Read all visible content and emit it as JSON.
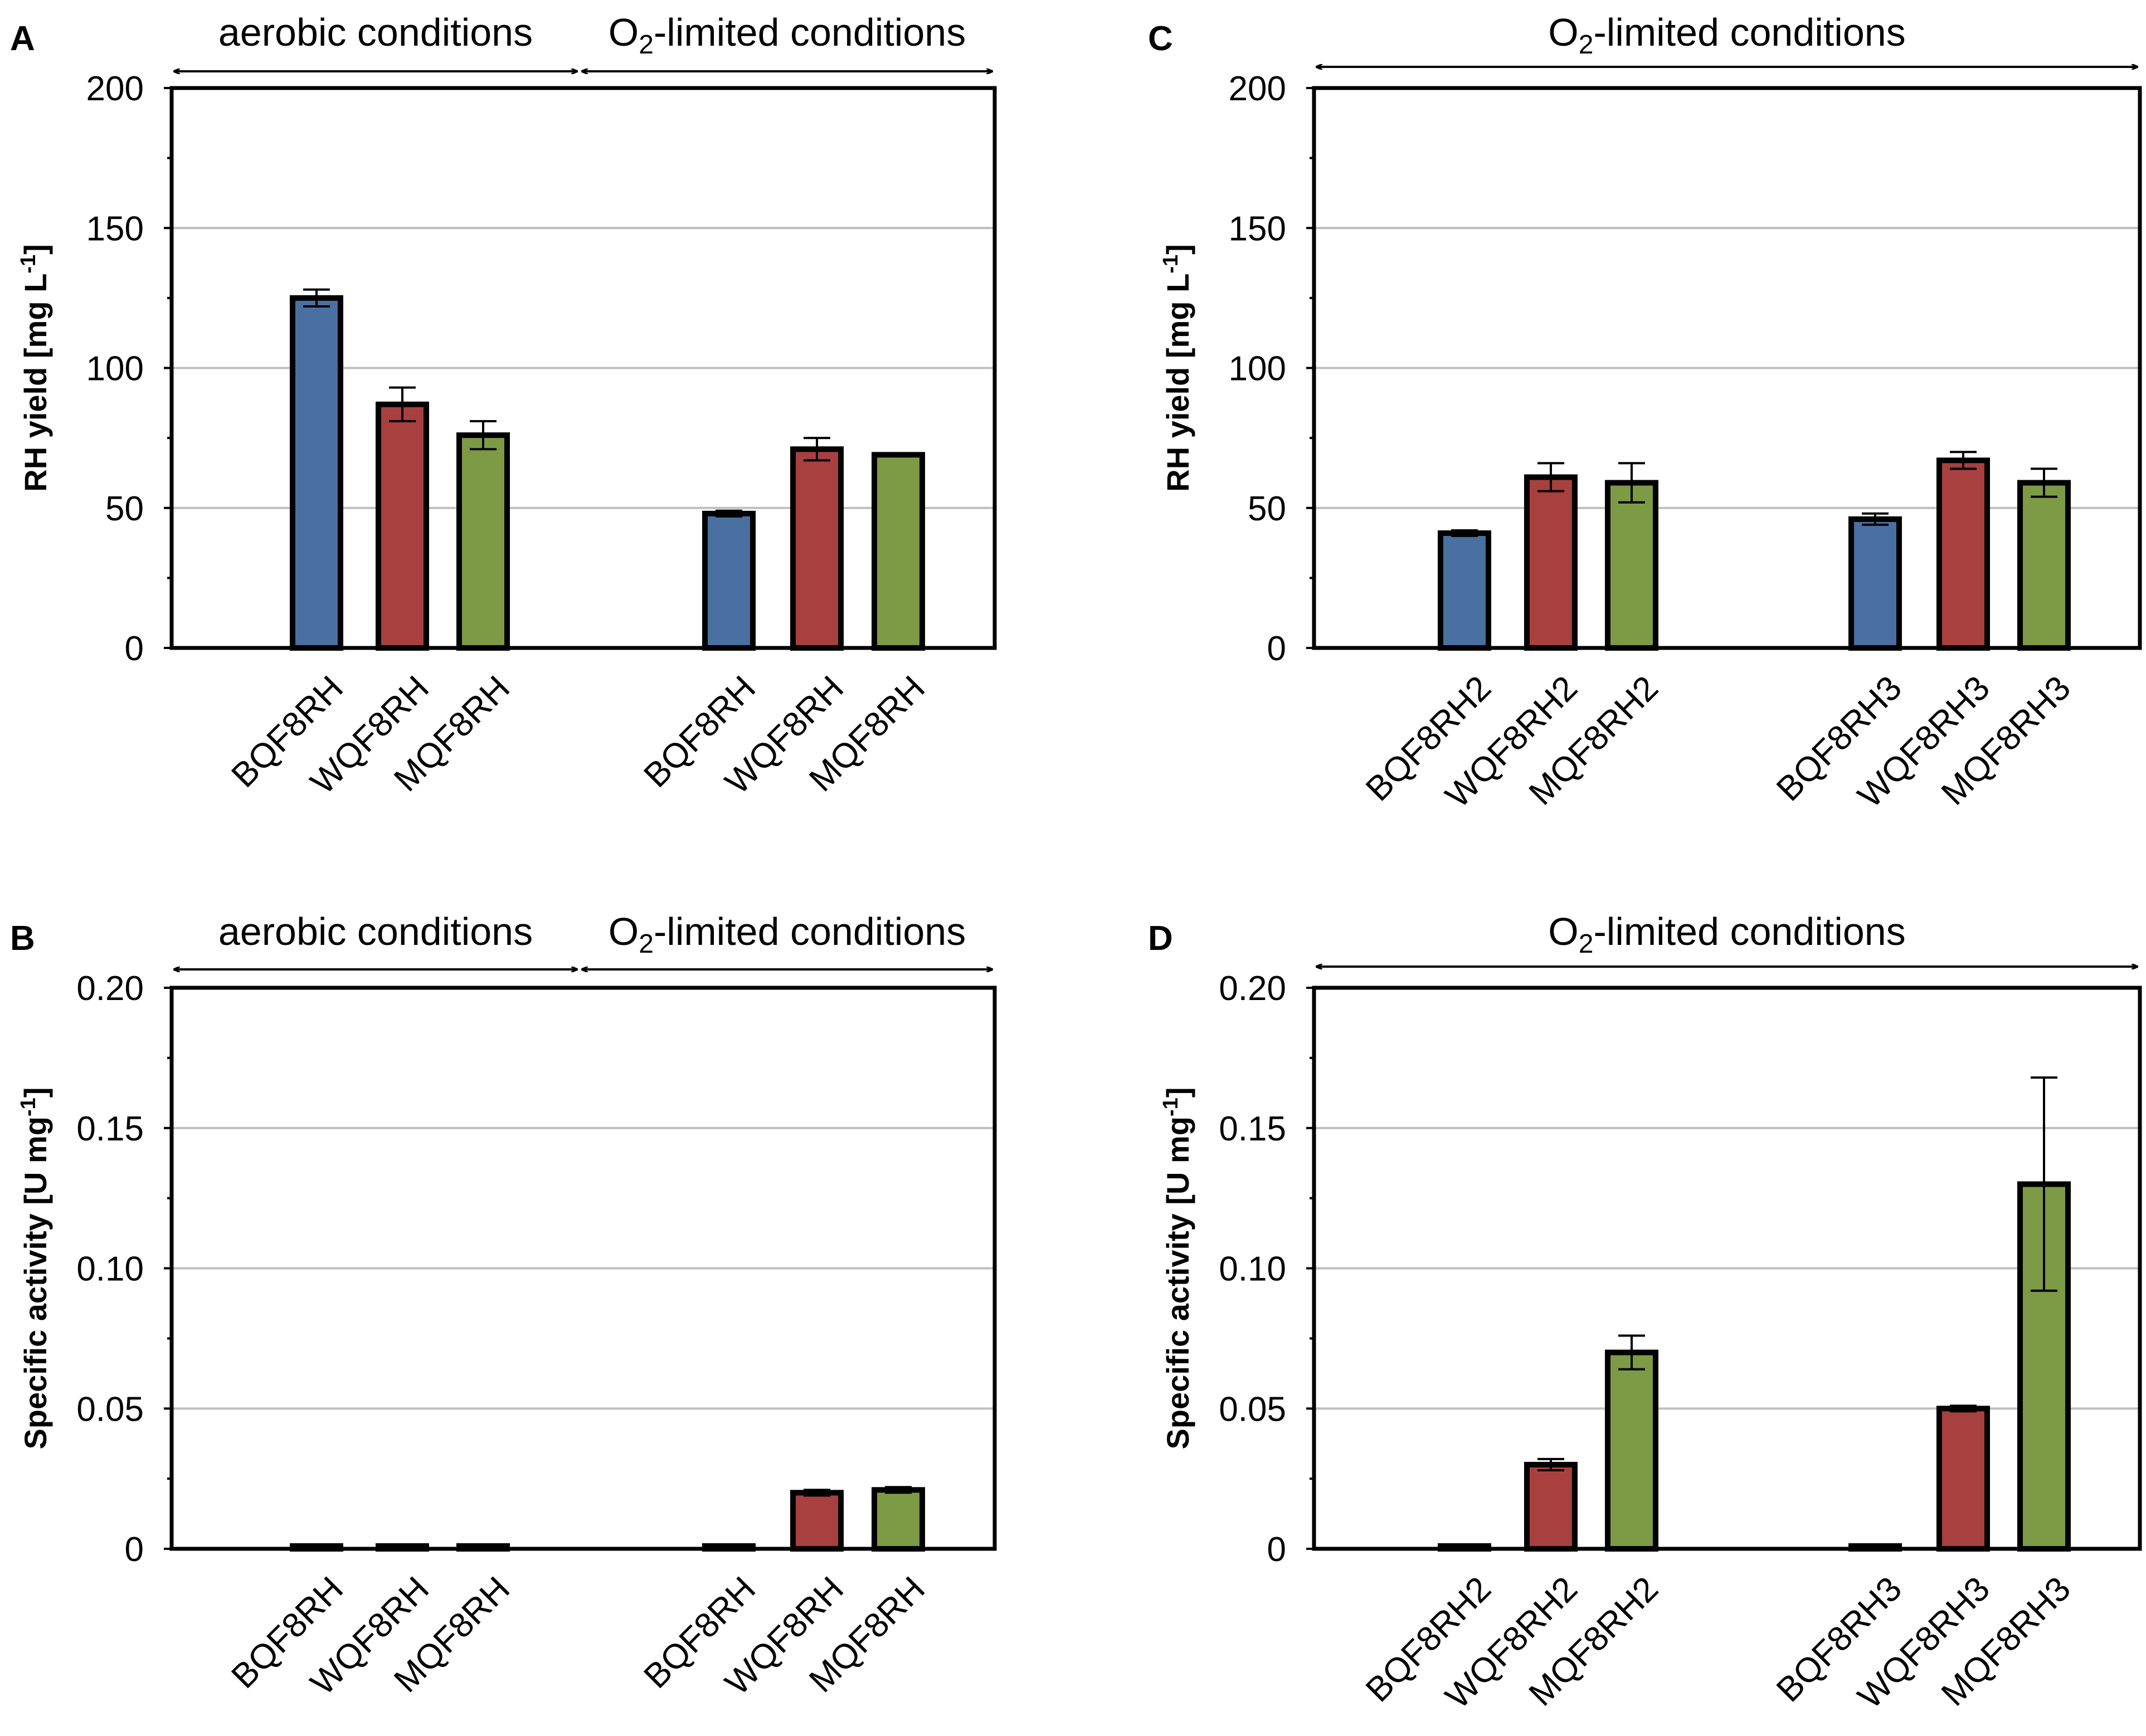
{
  "colors": {
    "blue": "#4a6fa1",
    "red": "#a8403f",
    "green": "#7d9a45"
  },
  "chart_data": [
    {
      "panel": "A",
      "type": "bar",
      "ylabel": "RH yield [mg L",
      "ylabel_sup": "-1",
      "ylabel_tail": "]",
      "ylim": [
        0,
        200
      ],
      "yticks": [
        "0",
        "50",
        "100",
        "150",
        "200"
      ],
      "conditions": [
        {
          "pre": "aerobic conditions",
          "sub": "",
          "post": ""
        },
        {
          "pre": "O",
          "sub": "2",
          "post": "-limited conditions"
        }
      ],
      "categories": [
        "BQF8RH",
        "WQF8RH",
        "MQF8RH",
        "BQF8RH",
        "WQF8RH",
        "MQF8RH"
      ],
      "values": [
        125,
        87,
        76,
        48,
        71,
        69
      ],
      "errors": [
        3,
        6,
        5,
        1,
        4,
        0
      ],
      "colors": [
        "blue",
        "red",
        "green",
        "blue",
        "red",
        "green"
      ]
    },
    {
      "panel": "B",
      "type": "bar",
      "ylabel": "Specific activity [U mg",
      "ylabel_sup": "-1",
      "ylabel_tail": "]",
      "ylim": [
        0,
        0.2
      ],
      "yticks": [
        "0",
        "0.05",
        "0.10",
        "0.15",
        "0.20"
      ],
      "conditions": [
        {
          "pre": "aerobic conditions",
          "sub": "",
          "post": ""
        },
        {
          "pre": "O",
          "sub": "2",
          "post": "-limited conditions"
        }
      ],
      "categories": [
        "BQF8RH",
        "WQF8RH",
        "MQF8RH",
        "BQF8RH",
        "WQF8RH",
        "MQF8RH"
      ],
      "values": [
        0.001,
        0.001,
        0.001,
        0.001,
        0.02,
        0.021
      ],
      "errors": [
        0,
        0,
        0,
        0,
        0.001,
        0.001
      ],
      "colors": [
        "blue",
        "red",
        "green",
        "blue",
        "red",
        "green"
      ]
    },
    {
      "panel": "C",
      "type": "bar",
      "ylabel": "RH yield [mg L",
      "ylabel_sup": "-1",
      "ylabel_tail": "]",
      "ylim": [
        0,
        200
      ],
      "yticks": [
        "0",
        "50",
        "100",
        "150",
        "200"
      ],
      "conditions": [
        {
          "pre": "O",
          "sub": "2",
          "post": "-limited conditions"
        }
      ],
      "categories": [
        "BQF8RH2",
        "WQF8RH2",
        "MQF8RH2",
        "BQF8RH3",
        "WQF8RH3",
        "MQF8RH3"
      ],
      "values": [
        41,
        61,
        59,
        46,
        67,
        59
      ],
      "errors": [
        1,
        5,
        7,
        2,
        3,
        5
      ],
      "colors": [
        "blue",
        "red",
        "green",
        "blue",
        "red",
        "green"
      ]
    },
    {
      "panel": "D",
      "type": "bar",
      "ylabel": "Specific activity [U mg",
      "ylabel_sup": "-1",
      "ylabel_tail": "]",
      "ylim": [
        0,
        0.2
      ],
      "yticks": [
        "0",
        "0.05",
        "0.10",
        "0.15",
        "0.20"
      ],
      "conditions": [
        {
          "pre": "O",
          "sub": "2",
          "post": "-limited conditions"
        }
      ],
      "categories": [
        "BQF8RH2",
        "WQF8RH2",
        "MQF8RH2",
        "BQF8RH3",
        "WQF8RH3",
        "MQF8RH3"
      ],
      "values": [
        0.001,
        0.03,
        0.07,
        0.001,
        0.05,
        0.13
      ],
      "errors": [
        0,
        0.002,
        0.006,
        0,
        0.001,
        0.038
      ],
      "colors": [
        "blue",
        "red",
        "green",
        "blue",
        "red",
        "green"
      ]
    }
  ]
}
